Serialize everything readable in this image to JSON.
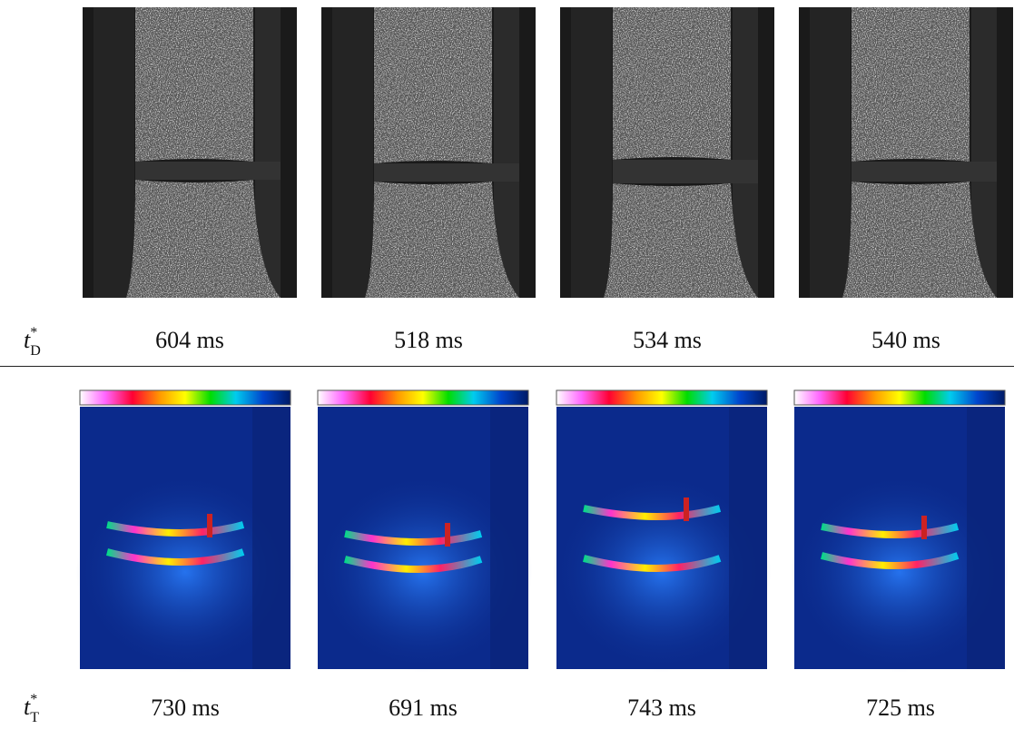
{
  "rows": [
    {
      "label": {
        "base": "t",
        "sup": "*",
        "sub": "D"
      },
      "times": [
        "604 ms",
        "518 ms",
        "534 ms",
        "540 ms"
      ]
    },
    {
      "label": {
        "base": "t",
        "sup": "*",
        "sub": "T"
      },
      "times": [
        "730 ms",
        "691 ms",
        "743 ms",
        "725 ms"
      ]
    }
  ]
}
